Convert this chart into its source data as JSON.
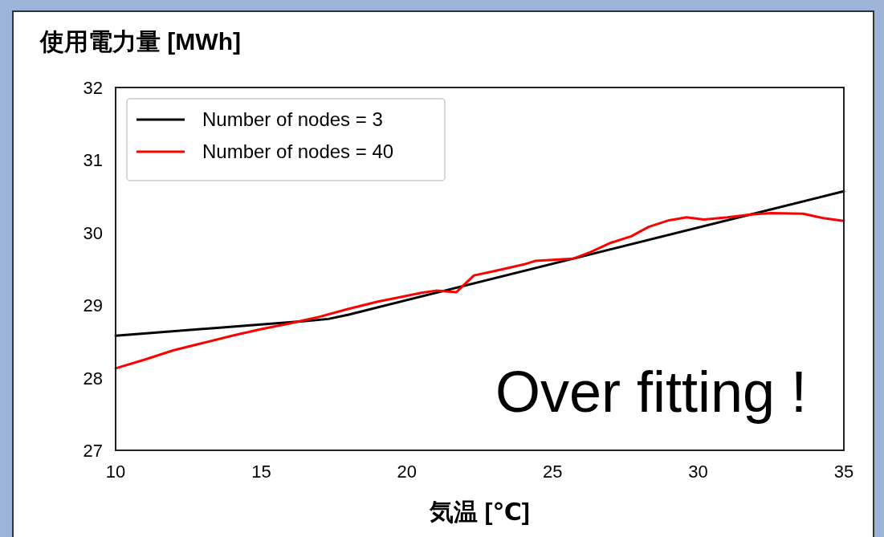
{
  "chart_data": {
    "type": "line",
    "ylabel": "使用電力量 [MWh]",
    "xlabel": "気温 [℃]",
    "annotations": [
      "Over fitting !"
    ],
    "xlim": [
      10,
      35
    ],
    "ylim": [
      27,
      32
    ],
    "xticks": [
      10,
      15,
      20,
      25,
      30,
      35
    ],
    "yticks": [
      27,
      28,
      29,
      30,
      31,
      32
    ],
    "legend": "top left",
    "series": [
      {
        "name": "Number of nodes = 3",
        "color": "#000000",
        "x": [
          10,
          16.5,
          17.3,
          18,
          35
        ],
        "values": [
          28.58,
          28.78,
          28.81,
          28.87,
          30.57
        ]
      },
      {
        "name": "Number of nodes = 40",
        "color": "#ff0000",
        "x": [
          10,
          11,
          12,
          13,
          14,
          15,
          16,
          17,
          18,
          19,
          20,
          20.5,
          21,
          21.7,
          22.3,
          23,
          24,
          24.4,
          25.7,
          26.3,
          27,
          27.7,
          28.3,
          29,
          29.6,
          30.2,
          31,
          31.8,
          32.5,
          33.6,
          34.3,
          35
        ],
        "values": [
          28.13,
          28.25,
          28.38,
          28.48,
          28.58,
          28.67,
          28.75,
          28.84,
          28.95,
          29.05,
          29.13,
          29.17,
          29.2,
          29.18,
          29.41,
          29.47,
          29.56,
          29.61,
          29.64,
          29.73,
          29.86,
          29.95,
          30.08,
          30.17,
          30.21,
          30.18,
          30.21,
          30.25,
          30.27,
          30.26,
          30.2,
          30.16
        ]
      }
    ]
  }
}
